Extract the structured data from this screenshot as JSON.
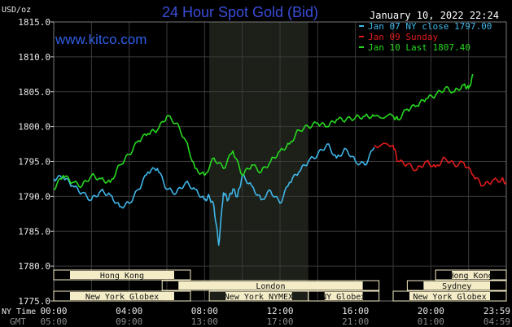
{
  "header": {
    "unit_label": "USD/oz",
    "title": "24 Hour Spot Gold (Bid)",
    "datetime": "January 10, 2022 22:24",
    "watermark": "www.kitco.com"
  },
  "colors": {
    "background": "#000000",
    "grid": "#3a3a3a",
    "shaded_region": "#1c2019",
    "title": "#3a4dd8",
    "jan07": "#3fb6e8",
    "jan09": "#e01b1b",
    "jan10": "#27d81f",
    "session_box": "#f3ecc6"
  },
  "legend": [
    {
      "label": "Jan 07 NY close 1797.00",
      "color": "#3fb6e8"
    },
    {
      "label": "Jan 09 Sunday",
      "color": "#e01b1b"
    },
    {
      "label": "Jan 10 Last 1807.40",
      "color": "#27d81f"
    }
  ],
  "sessions": [
    {
      "label": "Hong Kong",
      "row": 0,
      "start": 0,
      "end": 7.25
    },
    {
      "label": "Hong Kong",
      "row": 0,
      "start": 20.25,
      "end": 24
    },
    {
      "label": "London",
      "row": 1,
      "start": 5.75,
      "end": 17.25
    },
    {
      "label": "Sydney",
      "row": 1,
      "start": 18.75,
      "end": 24
    },
    {
      "label": "New York Globex",
      "row": 2,
      "start": 0,
      "end": 7.25
    },
    {
      "label": "New York NYMEX",
      "row": 2,
      "start": 8.25,
      "end": 13.5
    },
    {
      "label": "NY Globex",
      "row": 2,
      "start": 13.5,
      "end": 17.25
    },
    {
      "label": "New York Globex",
      "row": 2,
      "start": 18.0,
      "end": 24
    }
  ],
  "time_axis": {
    "ny_label": "NY Time",
    "gmt_label": "GMT",
    "ny_ticks": [
      "00:00",
      "04:00",
      "08:00",
      "12:00",
      "16:00",
      "20:00",
      "23:59"
    ],
    "gmt_ticks": [
      "05:00",
      "09:00",
      "13:00",
      "17:00",
      "21:00",
      "01:00",
      "04:59"
    ]
  },
  "chart_data": {
    "type": "line",
    "title": "24 Hour Spot Gold (Bid)",
    "ylabel": "USD/oz",
    "xlabel": "NY Time",
    "ylim": [
      1775,
      1815
    ],
    "yticks": [
      "1815.0",
      "1810.0",
      "1805.0",
      "1800.0",
      "1795.0",
      "1790.0",
      "1785.0",
      "1780.0",
      "1775.0"
    ],
    "ytick_values": [
      1815,
      1810,
      1805,
      1800,
      1795,
      1790,
      1785,
      1780,
      1775
    ],
    "xlim_hours": [
      0,
      24
    ],
    "shaded_hours": [
      8.25,
      13.5
    ],
    "grid": true,
    "series": [
      {
        "name": "Jan 07 NY close 1797.00",
        "color": "#3fb6e8",
        "x_hours": [
          0,
          0.5,
          1.0,
          1.5,
          2.0,
          2.5,
          3.0,
          3.5,
          4.0,
          4.5,
          5.0,
          5.5,
          6.0,
          6.5,
          7.0,
          7.5,
          8.0,
          8.25,
          8.5,
          8.75,
          9.0,
          9.25,
          9.5,
          9.75,
          10.0,
          10.5,
          11.0,
          11.5,
          12.0,
          12.5,
          13.0,
          13.5,
          14.0,
          14.5,
          15.0,
          15.5,
          16.0,
          16.5,
          17.0
        ],
        "values": [
          1792.5,
          1792.8,
          1791.5,
          1790.5,
          1789.5,
          1790.8,
          1790.2,
          1788.5,
          1789.0,
          1791.0,
          1793.5,
          1794.0,
          1791.0,
          1790.5,
          1792.0,
          1791.0,
          1789.5,
          1790.0,
          1788.5,
          1783.0,
          1790.5,
          1789.5,
          1791.0,
          1790.0,
          1793.0,
          1791.5,
          1789.5,
          1790.8,
          1789.0,
          1792.0,
          1793.5,
          1795.0,
          1796.0,
          1797.5,
          1795.5,
          1796.8,
          1795.0,
          1794.5,
          1797.0
        ]
      },
      {
        "name": "Jan 09 Sunday",
        "color": "#e01b1b",
        "x_hours": [
          17.0,
          18.0,
          18.25,
          18.75,
          19.25,
          19.75,
          20.25,
          20.75,
          21.25,
          21.75,
          22.25,
          22.75,
          23.25,
          23.75,
          24.0
        ],
        "values": [
          1797.3,
          1797.3,
          1795.0,
          1794.6,
          1793.8,
          1795.0,
          1794.2,
          1795.5,
          1794.5,
          1794.8,
          1793.0,
          1791.5,
          1792.2,
          1792.4,
          1792.0
        ]
      },
      {
        "name": "Jan 10 Last 1807.40",
        "color": "#27d81f",
        "x_hours": [
          0,
          0.5,
          1.0,
          1.5,
          2.0,
          2.5,
          3.0,
          3.5,
          4.0,
          4.5,
          5.0,
          5.5,
          6.0,
          6.5,
          7.0,
          7.5,
          8.0,
          8.5,
          9.0,
          9.5,
          10.0,
          10.5,
          11.0,
          11.5,
          12.0,
          12.5,
          13.0,
          13.5,
          14.0,
          14.5,
          15.0,
          15.5,
          16.0,
          16.5,
          17.0,
          18.0,
          18.25,
          18.75,
          19.25,
          19.75,
          20.25,
          20.75,
          21.25,
          21.75,
          22.0,
          22.25
        ],
        "values": [
          1791.0,
          1793.0,
          1792.0,
          1791.5,
          1793.0,
          1792.5,
          1792.0,
          1794.5,
          1796.0,
          1798.0,
          1799.0,
          1799.5,
          1801.5,
          1800.5,
          1798.0,
          1794.0,
          1793.0,
          1795.5,
          1794.0,
          1796.5,
          1793.0,
          1794.5,
          1793.5,
          1795.0,
          1796.5,
          1797.5,
          1799.5,
          1800.0,
          1800.5,
          1800.0,
          1801.0,
          1801.0,
          1801.3,
          1801.5,
          1801.5,
          1801.5,
          1801.0,
          1802.5,
          1803.0,
          1804.0,
          1804.5,
          1805.5,
          1805.0,
          1806.0,
          1805.5,
          1807.4
        ]
      }
    ]
  }
}
